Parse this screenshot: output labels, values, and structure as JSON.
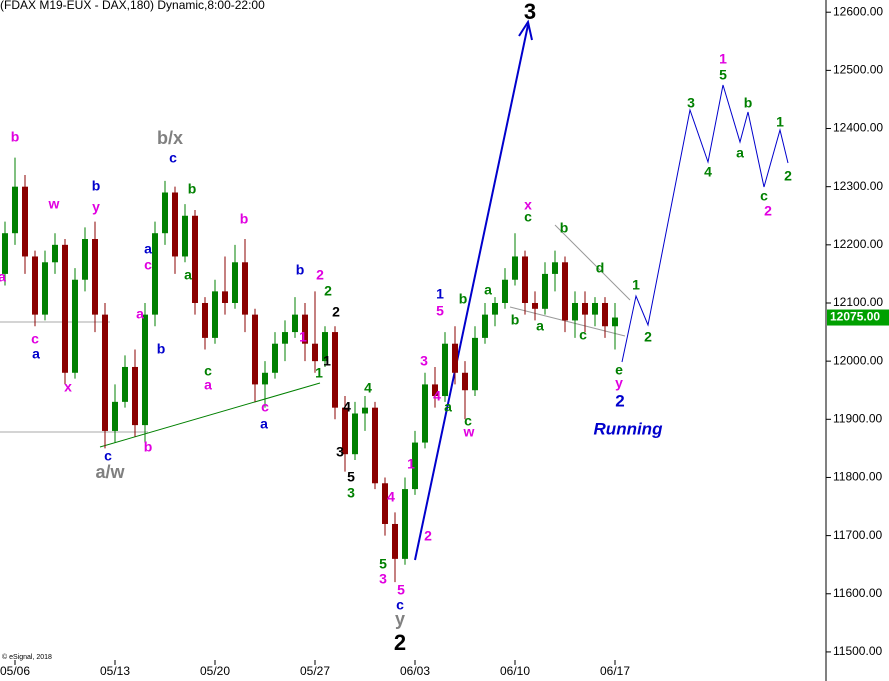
{
  "chart_data": {
    "type": "candlestick",
    "title": "(FDAX M19-EUX - DAX,180) Dynamic,8:00-22:00",
    "copyright": "© eSignal, 2018",
    "up_color": "#008000",
    "down_color": "#8b0000",
    "xlim": [
      -0.75,
      40.55
    ],
    "xticks": [
      {
        "value": 0,
        "label": "05/06"
      },
      {
        "value": 5,
        "label": "05/13"
      },
      {
        "value": 10,
        "label": "05/20"
      },
      {
        "value": 15,
        "label": "05/27"
      },
      {
        "value": 20,
        "label": "06/03"
      },
      {
        "value": 25,
        "label": "06/10"
      },
      {
        "value": 30,
        "label": "06/17"
      }
    ],
    "ylim": [
      11450,
      12621
    ],
    "yticks": [
      {
        "value": 11500,
        "label": "11500.00"
      },
      {
        "value": 11600,
        "label": "11600.00"
      },
      {
        "value": 11700,
        "label": "11700.00"
      },
      {
        "value": 11800,
        "label": "11800.00"
      },
      {
        "value": 11900,
        "label": "11900.00"
      },
      {
        "value": 12000,
        "label": "12000.00"
      },
      {
        "value": 12100,
        "label": "12100.00"
      },
      {
        "value": 12200,
        "label": "12200.00"
      },
      {
        "value": 12300,
        "label": "12300.00"
      },
      {
        "value": 12400,
        "label": "12400.00"
      },
      {
        "value": 12500,
        "label": "12500.00"
      },
      {
        "value": 12600,
        "label": "12600.00"
      }
    ],
    "last_price": {
      "value": 12075,
      "label": "12075.00",
      "color": "#00a000"
    },
    "x": [
      -0.5,
      0,
      0.5,
      1,
      1.5,
      2,
      2.5,
      3,
      3.5,
      4,
      4.5,
      5,
      5.5,
      6,
      6.5,
      7,
      7.5,
      8,
      8.5,
      9,
      9.5,
      10,
      10.5,
      11,
      11.5,
      12,
      12.5,
      13,
      13.5,
      14,
      14.5,
      15,
      15.5,
      16,
      16.5,
      17,
      17.5,
      18,
      18.5,
      19,
      19.5,
      20,
      20.5,
      21,
      21.5,
      22,
      22.5,
      23,
      23.5,
      24,
      24.5,
      25,
      25.5,
      26,
      26.5,
      27,
      27.5,
      28,
      28.5,
      29,
      29.5,
      30
    ],
    "open": [
      12150,
      12220,
      12300,
      12180,
      12080,
      12170,
      12200,
      11980,
      12140,
      12210,
      12080,
      11880,
      11930,
      11990,
      11890,
      12080,
      12220,
      12290,
      12180,
      12250,
      12100,
      12040,
      12120,
      12100,
      12170,
      12080,
      11960,
      11980,
      12030,
      12050,
      12080,
      12030,
      12000,
      12050,
      11920,
      11840,
      11910,
      11920,
      11790,
      11720,
      11660,
      11780,
      11860,
      11960,
      11940,
      12030,
      11980,
      11950,
      12040,
      12080,
      12100,
      12140,
      12180,
      12100,
      12090,
      12150,
      12170,
      12070,
      12100,
      12080,
      12100,
      12060
    ],
    "high": [
      12240,
      12350,
      12320,
      12190,
      12190,
      12220,
      12210,
      12160,
      12230,
      12240,
      12100,
      11960,
      12010,
      12020,
      12100,
      12240,
      12310,
      12300,
      12270,
      12260,
      12110,
      12140,
      12180,
      12200,
      12210,
      12090,
      12000,
      12050,
      12070,
      12110,
      12100,
      12120,
      12060,
      12060,
      11940,
      11930,
      11940,
      11930,
      11800,
      11740,
      11800,
      11880,
      11980,
      11990,
      12050,
      12060,
      12000,
      12060,
      12100,
      12110,
      12160,
      12220,
      12190,
      12120,
      12170,
      12190,
      12180,
      12120,
      12120,
      12110,
      12110,
      12100
    ],
    "low": [
      12130,
      12200,
      12150,
      12060,
      12070,
      12150,
      11960,
      11970,
      12120,
      12050,
      11850,
      11860,
      11920,
      11870,
      11860,
      12060,
      12200,
      12150,
      12170,
      12080,
      12020,
      12030,
      12080,
      12090,
      12050,
      11930,
      11920,
      11970,
      12000,
      12040,
      12000,
      11980,
      11990,
      11900,
      11810,
      11830,
      11880,
      11780,
      11700,
      11620,
      11650,
      11770,
      11850,
      11920,
      11930,
      11960,
      11900,
      11940,
      12030,
      12060,
      12090,
      12130,
      12080,
      12070,
      12080,
      12120,
      12050,
      12040,
      12050,
      12060,
      12040,
      12020
    ],
    "close": [
      12220,
      12300,
      12180,
      12080,
      12170,
      12200,
      11980,
      12140,
      12210,
      12080,
      11880,
      11930,
      11990,
      11890,
      12080,
      12220,
      12290,
      12180,
      12250,
      12100,
      12040,
      12120,
      12100,
      12170,
      12080,
      11960,
      11980,
      12030,
      12050,
      12080,
      12030,
      12000,
      12050,
      11920,
      11840,
      11910,
      11920,
      11790,
      11720,
      11660,
      11780,
      11860,
      11960,
      11940,
      12030,
      11980,
      11950,
      12040,
      12080,
      12100,
      12140,
      12180,
      12100,
      12090,
      12150,
      12170,
      12070,
      12100,
      12080,
      12100,
      12060,
      12075
    ],
    "annotations": [
      {
        "text": "b",
        "color": "#e000e0"
      },
      {
        "text": "a",
        "color": "#e000e0"
      },
      {
        "text": "c",
        "color": "#e000e0"
      },
      {
        "text": "a",
        "color": "#0000cc"
      },
      {
        "text": "w",
        "color": "#e000e0"
      },
      {
        "text": "x",
        "color": "#e000e0"
      },
      {
        "text": "b",
        "color": "#0000cc"
      },
      {
        "text": "y",
        "color": "#e000e0"
      },
      {
        "text": "c",
        "color": "#0000cc"
      },
      {
        "text": "a/w",
        "color": "#808080"
      },
      {
        "text": "b",
        "color": "#e000e0"
      },
      {
        "text": "a",
        "color": "#0000cc"
      },
      {
        "text": "c",
        "color": "#e000e0"
      },
      {
        "text": "a",
        "color": "#e000e0"
      },
      {
        "text": "b",
        "color": "#0000cc"
      },
      {
        "text": "b/x",
        "color": "#808080"
      },
      {
        "text": "c",
        "color": "#0000cc"
      },
      {
        "text": "b",
        "color": "#008000"
      },
      {
        "text": "a",
        "color": "#008000"
      },
      {
        "text": "c",
        "color": "#008000"
      },
      {
        "text": "a",
        "color": "#e000e0"
      },
      {
        "text": "b",
        "color": "#e000e0"
      },
      {
        "text": "a",
        "color": "#0000cc"
      },
      {
        "text": "c",
        "color": "#e000e0"
      },
      {
        "text": "b",
        "color": "#0000cc"
      },
      {
        "text": "2",
        "color": "#e000e0"
      },
      {
        "text": "2",
        "color": "#008000"
      },
      {
        "text": "2",
        "color": "#000000"
      },
      {
        "text": "1",
        "color": "#e000e0"
      },
      {
        "text": "1",
        "color": "#000000"
      },
      {
        "text": "1",
        "color": "#008000"
      },
      {
        "text": "4",
        "color": "#008000"
      },
      {
        "text": "4",
        "color": "#000000"
      },
      {
        "text": "3",
        "color": "#000000"
      },
      {
        "text": "5",
        "color": "#000000"
      },
      {
        "text": "3",
        "color": "#008000"
      },
      {
        "text": "4",
        "color": "#e000e0"
      },
      {
        "text": "1",
        "color": "#e000e0"
      },
      {
        "text": "2",
        "color": "#e000e0"
      },
      {
        "text": "5",
        "color": "#008000"
      },
      {
        "text": "3",
        "color": "#e000e0"
      },
      {
        "text": "5",
        "color": "#e000e0"
      },
      {
        "text": "c",
        "color": "#0000cc"
      },
      {
        "text": "y",
        "color": "#808080"
      },
      {
        "text": "2",
        "color": "#000000"
      },
      {
        "text": "3",
        "color": "#000000"
      },
      {
        "text": "1",
        "color": "#0000cc"
      },
      {
        "text": "5",
        "color": "#e000e0"
      },
      {
        "text": "3",
        "color": "#e000e0"
      },
      {
        "text": "4",
        "color": "#e000e0"
      },
      {
        "text": "a",
        "color": "#008000"
      },
      {
        "text": "c",
        "color": "#008000"
      },
      {
        "text": "w",
        "color": "#e000e0"
      },
      {
        "text": "b",
        "color": "#008000"
      },
      {
        "text": "a",
        "color": "#008000"
      },
      {
        "text": "b",
        "color": "#008000"
      },
      {
        "text": "x",
        "color": "#e000e0"
      },
      {
        "text": "c",
        "color": "#008000"
      },
      {
        "text": "a",
        "color": "#008000"
      },
      {
        "text": "b",
        "color": "#008000"
      },
      {
        "text": "c",
        "color": "#008000"
      },
      {
        "text": "d",
        "color": "#008000"
      },
      {
        "text": "1",
        "color": "#008000"
      },
      {
        "text": "2",
        "color": "#008000"
      },
      {
        "text": "e",
        "color": "#008000"
      },
      {
        "text": "y",
        "color": "#e000e0"
      },
      {
        "text": "2",
        "color": "#0000cc"
      },
      {
        "text": "Running",
        "color": "#0000cc"
      },
      {
        "text": "3",
        "color": "#008000"
      },
      {
        "text": "4",
        "color": "#008000"
      },
      {
        "text": "1",
        "color": "#e000e0"
      },
      {
        "text": "5",
        "color": "#008000"
      },
      {
        "text": "b",
        "color": "#008000"
      },
      {
        "text": "a",
        "color": "#008000"
      },
      {
        "text": "1",
        "color": "#008000"
      },
      {
        "text": "c",
        "color": "#008000"
      },
      {
        "text": "2",
        "color": "#e000e0"
      },
      {
        "text": "2",
        "color": "#008000"
      }
    ]
  }
}
